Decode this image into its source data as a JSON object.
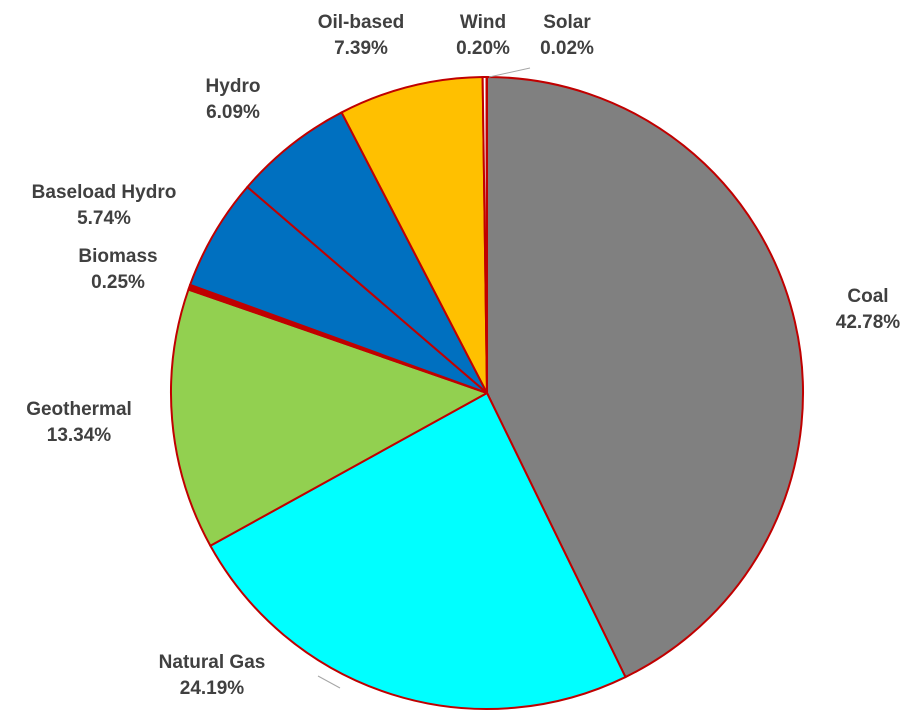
{
  "chart_data": {
    "type": "pie",
    "title": "",
    "slices": [
      {
        "label": "Coal",
        "percent_text": "42.78%",
        "value": 42.78,
        "color": "#808080"
      },
      {
        "label": "Natural Gas",
        "percent_text": "24.19%",
        "value": 24.19,
        "color": "#00FFFF"
      },
      {
        "label": "Geothermal",
        "percent_text": "13.34%",
        "value": 13.34,
        "color": "#92D050"
      },
      {
        "label": "Biomass",
        "percent_text": "0.25%",
        "value": 0.25,
        "color": "#C00000"
      },
      {
        "label": "Baseload Hydro",
        "percent_text": "5.74%",
        "value": 5.74,
        "color": "#0070C0"
      },
      {
        "label": "Hydro",
        "percent_text": "6.09%",
        "value": 6.09,
        "color": "#0070C0"
      },
      {
        "label": "Oil-based",
        "percent_text": "7.39%",
        "value": 7.39,
        "color": "#FFC000"
      },
      {
        "label": "Wind",
        "percent_text": "0.20%",
        "value": 0.2,
        "color": "#FFFFFF"
      },
      {
        "label": "Solar",
        "percent_text": "0.02%",
        "value": 0.02,
        "color": "#FFFFFF"
      }
    ],
    "slice_border_color": "#C00000",
    "label_color": "#404040"
  }
}
